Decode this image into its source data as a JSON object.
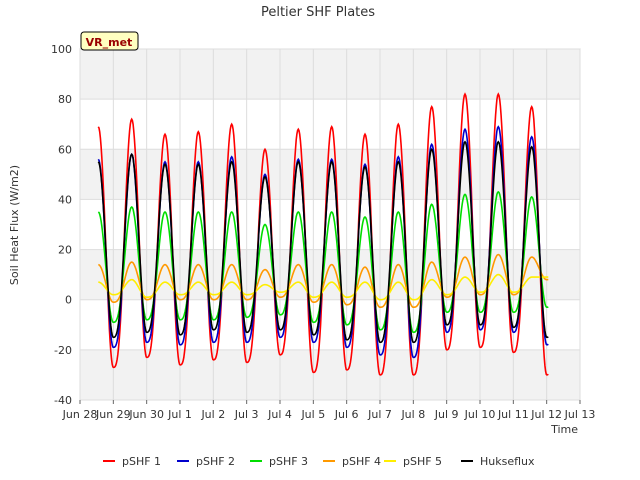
{
  "chart_data": {
    "type": "line",
    "title": "Peltier SHF Plates",
    "xlabel": "Time",
    "ylabel": "Soil Heat Flux (W/m2)",
    "ylim": [
      -40,
      100
    ],
    "yticks": [
      -40,
      -20,
      0,
      20,
      40,
      60,
      80,
      100
    ],
    "xlim": [
      0,
      15
    ],
    "xticks": [
      {
        "x": 0,
        "label": "Jun 28"
      },
      {
        "x": 1,
        "label": "Jun 29"
      },
      {
        "x": 2,
        "label": "Jun 30"
      },
      {
        "x": 3,
        "label": "Jul 1"
      },
      {
        "x": 4,
        "label": "Jul 2"
      },
      {
        "x": 5,
        "label": "Jul 3"
      },
      {
        "x": 6,
        "label": "Jul 4"
      },
      {
        "x": 7,
        "label": "Jul 5"
      },
      {
        "x": 8,
        "label": "Jul 6"
      },
      {
        "x": 9,
        "label": "Jul 7"
      },
      {
        "x": 10,
        "label": "Jul 8"
      },
      {
        "x": 11,
        "label": "Jul 9"
      },
      {
        "x": 12,
        "label": "Jul 10"
      },
      {
        "x": 13,
        "label": "Jul 11"
      },
      {
        "x": 14,
        "label": "Jul 12"
      },
      {
        "x": 15,
        "label": "Jul 13"
      }
    ],
    "grid_bands": true,
    "legend_position": "bottom",
    "annotation": "VR_met",
    "series": [
      {
        "name": "pSHF 1",
        "color": "#ff0000",
        "peaks": [
          69,
          72,
          66,
          67,
          70,
          60,
          68,
          69,
          66,
          70,
          77,
          82,
          82,
          77
        ],
        "troughs": [
          -27,
          -27,
          -23,
          -26,
          -24,
          -25,
          -22,
          -29,
          -28,
          -30,
          -30,
          -20,
          -19,
          -21,
          -30
        ]
      },
      {
        "name": "pSHF 2",
        "color": "#0000cc",
        "peaks": [
          56,
          58,
          55,
          55,
          57,
          50,
          56,
          56,
          54,
          57,
          62,
          68,
          69,
          65
        ],
        "troughs": [
          -18,
          -19,
          -17,
          -18,
          -17,
          -17,
          -15,
          -17,
          -19,
          -22,
          -23,
          -13,
          -12,
          -13,
          -18
        ]
      },
      {
        "name": "pSHF 3",
        "color": "#00dd00",
        "peaks": [
          35,
          37,
          35,
          35,
          35,
          30,
          35,
          35,
          33,
          35,
          38,
          42,
          43,
          41
        ],
        "troughs": [
          -8,
          -9,
          -8,
          -8,
          -8,
          -7,
          -6,
          -9,
          -10,
          -12,
          -13,
          -5,
          -5,
          -5,
          -3
        ]
      },
      {
        "name": "pSHF 4",
        "color": "#ff9900",
        "peaks": [
          14,
          15,
          14,
          14,
          14,
          12,
          14,
          14,
          13,
          14,
          15,
          17,
          18,
          17
        ],
        "troughs": [
          -1,
          -1,
          0,
          0,
          0,
          0,
          1,
          -1,
          -2,
          -3,
          -3,
          1,
          2,
          2,
          8
        ]
      },
      {
        "name": "pSHF 5",
        "color": "#ffee00",
        "peaks": [
          7,
          8,
          7,
          7,
          7,
          6,
          7,
          7,
          7,
          7,
          8,
          9,
          10,
          9
        ],
        "troughs": [
          6,
          2,
          1,
          2,
          2,
          2,
          3,
          1,
          1,
          0,
          0,
          2,
          3,
          3,
          9
        ]
      },
      {
        "name": "Hukseflux",
        "color": "#000000",
        "peaks": [
          55,
          58,
          54,
          54,
          55,
          49,
          55,
          55,
          53,
          55,
          60,
          63,
          63,
          61
        ],
        "troughs": [
          -14,
          -15,
          -13,
          -14,
          -12,
          -13,
          -12,
          -14,
          -16,
          -17,
          -17,
          -10,
          -10,
          -11,
          -15
        ]
      }
    ]
  }
}
